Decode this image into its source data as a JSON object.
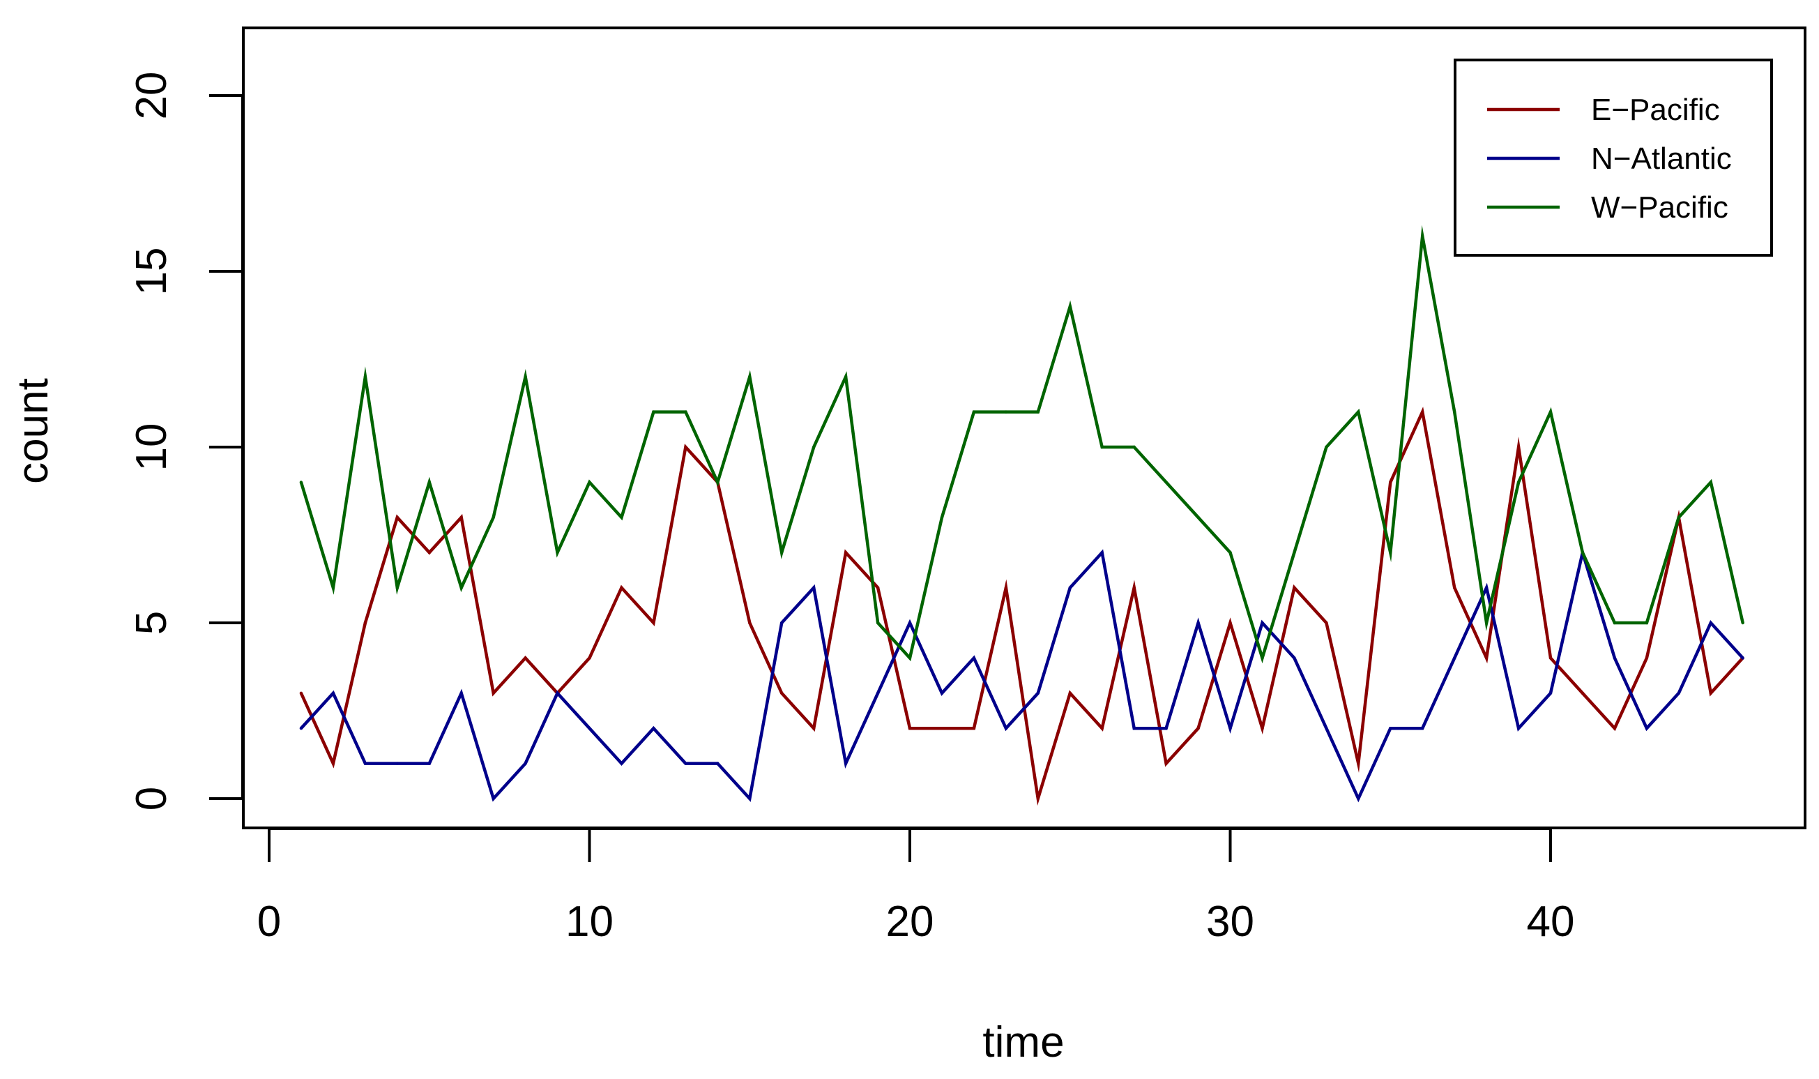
{
  "chart_data": {
    "type": "line",
    "title": "",
    "xlabel": "time",
    "ylabel": "count",
    "xlim": [
      0,
      46
    ],
    "ylim": [
      0,
      20
    ],
    "x_ticks": [
      0,
      10,
      20,
      30,
      40
    ],
    "y_ticks": [
      0,
      5,
      10,
      15,
      20
    ],
    "grid": false,
    "legend_position": "top-right",
    "x": [
      1,
      2,
      3,
      4,
      5,
      6,
      7,
      8,
      9,
      10,
      11,
      12,
      13,
      14,
      15,
      16,
      17,
      18,
      19,
      20,
      21,
      22,
      23,
      24,
      25,
      26,
      27,
      28,
      29,
      30,
      31,
      32,
      33,
      34,
      35,
      36,
      37,
      38,
      39,
      40,
      41,
      42,
      43,
      44,
      45,
      46
    ],
    "series": [
      {
        "name": "E−Pacific",
        "color": "#8B0000",
        "values": [
          3,
          1,
          5,
          8,
          7,
          8,
          3,
          4,
          3,
          4,
          6,
          5,
          10,
          9,
          5,
          3,
          2,
          7,
          6,
          2,
          2,
          2,
          6,
          0,
          3,
          2,
          6,
          1,
          2,
          5,
          2,
          6,
          5,
          1,
          9,
          11,
          6,
          4,
          10,
          4,
          3,
          2,
          4,
          8,
          3,
          4
        ]
      },
      {
        "name": "N−Atlantic",
        "color": "#00008B",
        "values": [
          2,
          3,
          1,
          1,
          1,
          3,
          0,
          1,
          3,
          2,
          1,
          2,
          1,
          1,
          0,
          5,
          6,
          1,
          3,
          5,
          3,
          4,
          2,
          3,
          6,
          7,
          2,
          2,
          5,
          2,
          5,
          4,
          2,
          0,
          2,
          2,
          4,
          6,
          2,
          3,
          7,
          4,
          2,
          3,
          5,
          4
        ]
      },
      {
        "name": "W−Pacific",
        "color": "#006400",
        "values": [
          9,
          6,
          12,
          6,
          9,
          6,
          8,
          12,
          7,
          9,
          8,
          11,
          11,
          9,
          12,
          7,
          10,
          12,
          5,
          4,
          8,
          11,
          11,
          11,
          14,
          10,
          10,
          9,
          8,
          7,
          4,
          7,
          10,
          11,
          7,
          16,
          11,
          5,
          9,
          11,
          7,
          5,
          5,
          8,
          9,
          5
        ]
      }
    ]
  }
}
